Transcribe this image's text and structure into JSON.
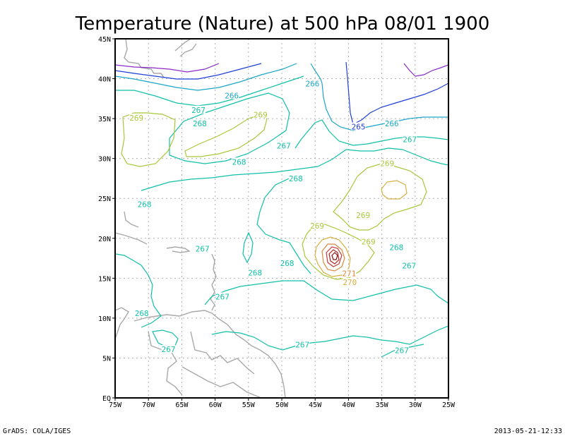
{
  "title": "Temperature (Nature) at 500 hPa 08/01 1900",
  "footer": {
    "left": "GrADS: COLA/IGES",
    "right": "2013-05-21-12:33"
  },
  "axes": {
    "x_ticks": [
      "75W",
      "70W",
      "65W",
      "60W",
      "55W",
      "50W",
      "45W",
      "40W",
      "35W",
      "30W",
      "25W"
    ],
    "y_ticks": [
      "EQ",
      "5N",
      "10N",
      "15N",
      "20N",
      "25N",
      "30N",
      "35N",
      "40N",
      "45N"
    ],
    "x_range": [
      -75,
      -25
    ],
    "y_range": [
      0,
      45
    ],
    "grid": true
  },
  "colors": {
    "c265": "#1f3fd6",
    "c266": "#1aa6c8",
    "c267": "#10c0a8",
    "c268": "#10c0a8",
    "c269": "#a8c83a",
    "c270": "#d8b040",
    "c271": "#d88a3a",
    "c272": "#c83a3a",
    "c264": "#8a2ac8",
    "land": "#a8a8a8"
  },
  "contour_labels": [
    {
      "text": "266",
      "lon": -57.5,
      "lat": 37.8,
      "key": "c266"
    },
    {
      "text": "267",
      "lon": -62.5,
      "lat": 36.0,
      "key": "c267"
    },
    {
      "text": "269",
      "lon": -71.8,
      "lat": 35.0,
      "key": "c269"
    },
    {
      "text": "268",
      "lon": -62.3,
      "lat": 34.3,
      "key": "c268"
    },
    {
      "text": "269",
      "lon": -53.2,
      "lat": 35.4,
      "key": "c269"
    },
    {
      "text": "266",
      "lon": -45.4,
      "lat": 39.3,
      "key": "c266"
    },
    {
      "text": "265",
      "lon": -38.5,
      "lat": 33.9,
      "key": "c265"
    },
    {
      "text": "266",
      "lon": -33.5,
      "lat": 34.3,
      "key": "c266"
    },
    {
      "text": "267",
      "lon": -49.7,
      "lat": 31.5,
      "key": "c267"
    },
    {
      "text": "267",
      "lon": -30.8,
      "lat": 32.3,
      "key": "c267"
    },
    {
      "text": "268",
      "lon": -56.4,
      "lat": 29.5,
      "key": "c268"
    },
    {
      "text": "269",
      "lon": -34.2,
      "lat": 29.3,
      "key": "c269"
    },
    {
      "text": "268",
      "lon": -47.9,
      "lat": 27.4,
      "key": "c268"
    },
    {
      "text": "268",
      "lon": -70.6,
      "lat": 24.2,
      "key": "c268"
    },
    {
      "text": "269",
      "lon": -37.8,
      "lat": 22.8,
      "key": "c269"
    },
    {
      "text": "269",
      "lon": -44.7,
      "lat": 21.5,
      "key": "c269"
    },
    {
      "text": "269",
      "lon": -37.0,
      "lat": 19.5,
      "key": "c269"
    },
    {
      "text": "267",
      "lon": -61.9,
      "lat": 18.6,
      "key": "c267"
    },
    {
      "text": "268",
      "lon": -32.8,
      "lat": 18.8,
      "key": "c268"
    },
    {
      "text": "268",
      "lon": -49.2,
      "lat": 16.8,
      "key": "c268"
    },
    {
      "text": "268",
      "lon": -54.0,
      "lat": 15.6,
      "key": "c268"
    },
    {
      "text": "271",
      "lon": -39.9,
      "lat": 15.5,
      "key": "c271"
    },
    {
      "text": "267",
      "lon": -30.9,
      "lat": 16.5,
      "key": "c267"
    },
    {
      "text": "270",
      "lon": -39.8,
      "lat": 14.4,
      "key": "c270"
    },
    {
      "text": "267",
      "lon": -58.9,
      "lat": 12.6,
      "key": "c267"
    },
    {
      "text": "268",
      "lon": -71.0,
      "lat": 10.5,
      "key": "c268"
    },
    {
      "text": "267",
      "lon": -46.9,
      "lat": 6.6,
      "key": "c267"
    },
    {
      "text": "267",
      "lon": -67.0,
      "lat": 6.0,
      "key": "c267"
    },
    {
      "text": "267",
      "lon": -32.0,
      "lat": 5.9,
      "key": "c267"
    }
  ]
}
